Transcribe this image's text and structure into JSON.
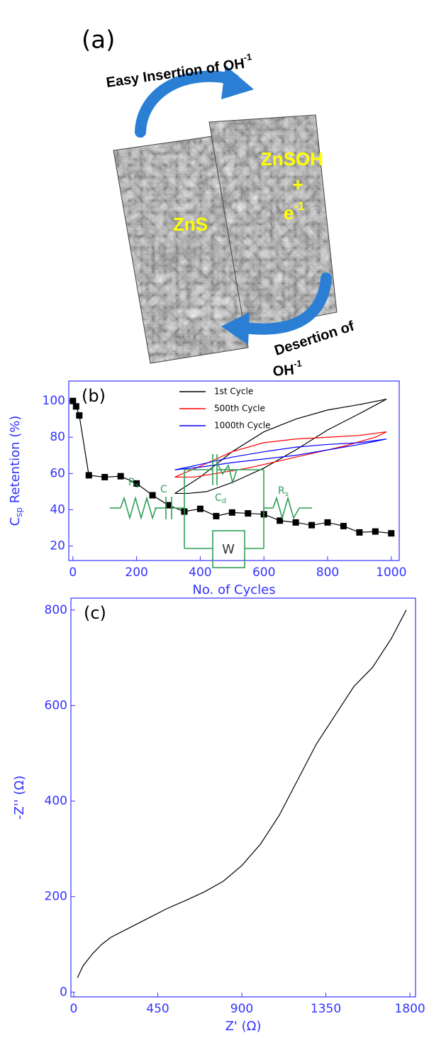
{
  "panel_a": {
    "label": "(a)",
    "top_arrow": {
      "text": "Easy Insertion of OH",
      "sup": "-1"
    },
    "left_image_label": "ZnS",
    "right_image_lines": [
      "ZnSOH",
      "+",
      "e"
    ],
    "right_image_sup": "-1",
    "bottom_arrow": {
      "line1": "Desertion of",
      "line2": "OH",
      "sup": "-1"
    }
  },
  "chart_data": [
    {
      "type": "line",
      "panel_label": "(b)",
      "xlabel": "No. of Cycles",
      "ylabel_parts": [
        "C",
        "sp",
        " Retention (%)"
      ],
      "axis_color": "#3333ff",
      "marker": "square",
      "xlim": [
        -13,
        1025
      ],
      "ylim": [
        12,
        111
      ],
      "xticks": [
        0,
        200,
        400,
        600,
        800,
        1000
      ],
      "yticks": [
        20,
        40,
        60,
        80,
        100
      ],
      "series": [
        {
          "name": null,
          "color": "#000000",
          "x": [
            0,
            10,
            20,
            50,
            100,
            150,
            200,
            250,
            300,
            350,
            400,
            450,
            500,
            550,
            600,
            650,
            700,
            750,
            800,
            850,
            900,
            950,
            1000
          ],
          "values": [
            100,
            97,
            92,
            59,
            58,
            58.5,
            54.5,
            48,
            42.5,
            39,
            40.5,
            36.5,
            38.5,
            38,
            37.5,
            34,
            33,
            31.5,
            33,
            31,
            27.5,
            28,
            27
          ]
        }
      ],
      "inset": {
        "series": [
          {
            "name": "1st Cycle",
            "color": "#000000",
            "x": [
              320,
              400,
              500,
              600,
              700,
              800,
              900,
              985,
              900,
              800,
              700,
              600,
              500,
              420,
              360,
              320
            ],
            "y": [
              49,
              58,
              72,
              83,
              90,
              95,
              98,
              101,
              93,
              84,
              73,
              63,
              55,
              50,
              49,
              49
            ]
          },
          {
            "name": "500th Cycle",
            "color": "#ff0000",
            "x": [
              320,
              400,
              500,
              600,
              700,
              800,
              900,
              985,
              950,
              850,
              750,
              650,
              550,
              450,
              380,
              320
            ],
            "y": [
              58,
              64,
              72,
              77,
              79,
              80,
              81,
              83,
              80,
              75,
              71,
              67,
              63,
              60,
              58,
              58
            ]
          },
          {
            "name": "1000th Cycle",
            "color": "#0000ff",
            "x": [
              320,
              400,
              500,
              600,
              700,
              800,
              900,
              985,
              900,
              800,
              700,
              600,
              500,
              400,
              320
            ],
            "y": [
              62,
              65,
              69,
              72,
              74.5,
              76,
              77,
              79,
              76,
              73,
              70,
              68,
              66,
              63.5,
              62
            ]
          }
        ]
      }
    },
    {
      "type": "line",
      "panel_label": "(c)",
      "xlabel": "Z' (Ω)",
      "ylabel": "-Z'' (Ω)",
      "axis_color": "#3333ff",
      "xlim": [
        -15,
        1830
      ],
      "ylim": [
        -10,
        825
      ],
      "xticks": [
        0,
        450,
        900,
        1350,
        1800
      ],
      "yticks": [
        0,
        200,
        400,
        600,
        800
      ],
      "series": [
        {
          "name": null,
          "color": "#000000",
          "x": [
            20,
            50,
            100,
            150,
            200,
            300,
            400,
            500,
            600,
            700,
            800,
            900,
            1000,
            1100,
            1200,
            1300,
            1400,
            1500,
            1600,
            1700,
            1780
          ],
          "values": [
            30,
            55,
            80,
            100,
            115,
            135,
            155,
            175,
            192,
            210,
            232,
            265,
            310,
            370,
            445,
            520,
            580,
            640,
            680,
            740,
            800
          ]
        }
      ],
      "circuit": {
        "r1": [
          "R",
          "s"
        ],
        "c": "C",
        "cd": [
          "C",
          "d"
        ],
        "w": "W",
        "r2": [
          "R",
          "s"
        ]
      }
    }
  ]
}
